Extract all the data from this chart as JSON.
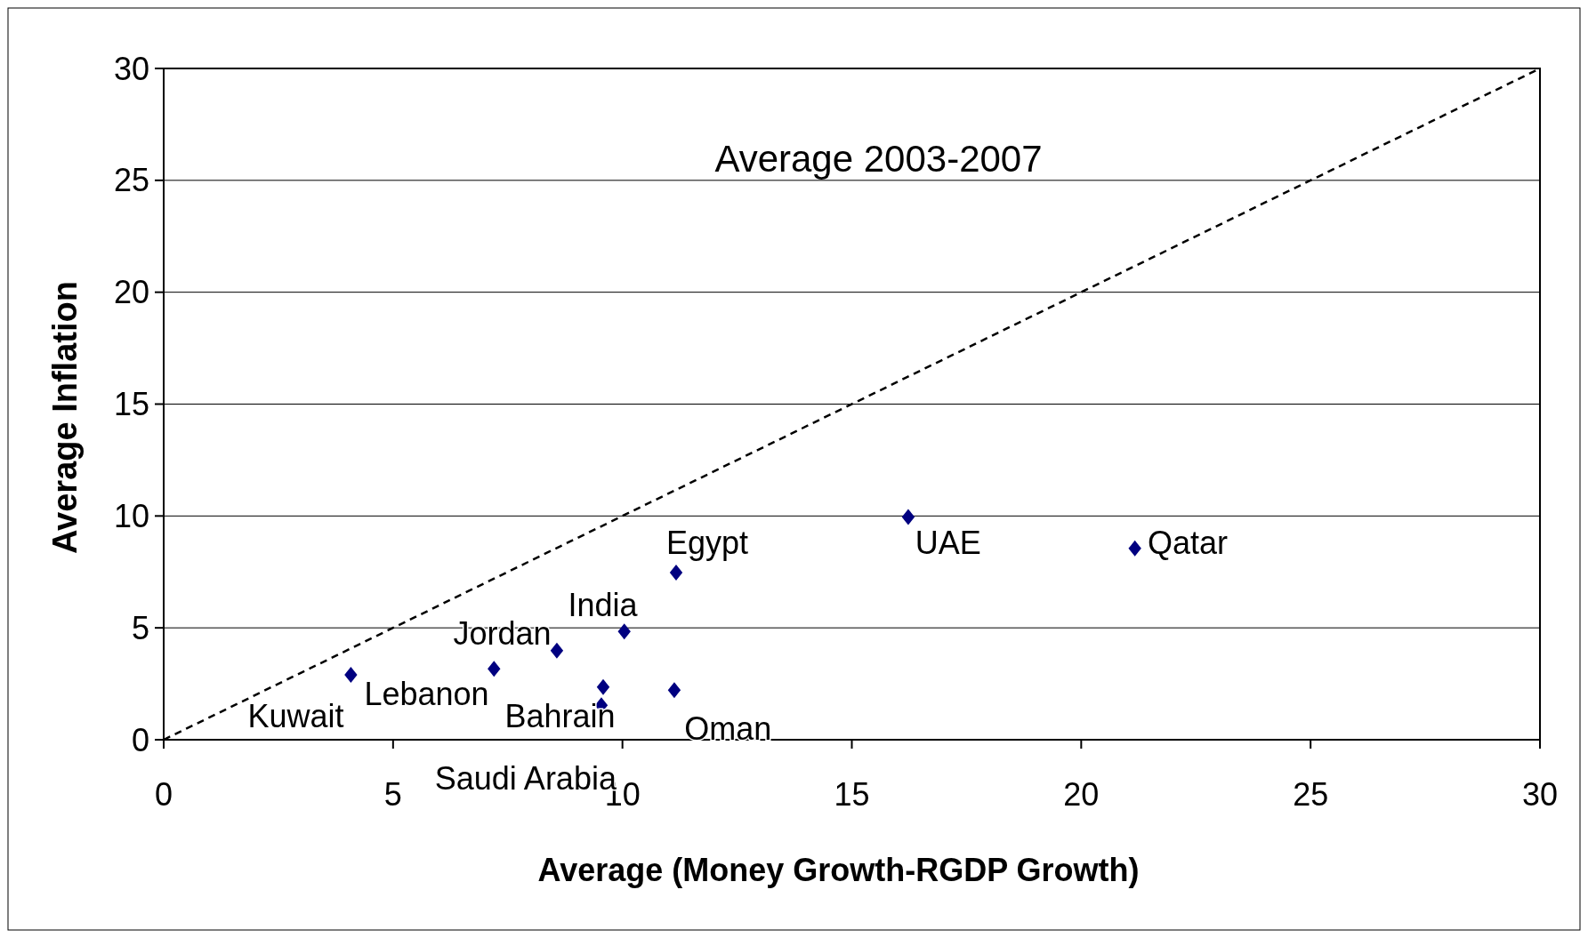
{
  "chart_data": {
    "type": "scatter",
    "title": "Average 2003-2007",
    "xlabel": "Average (Money Growth-RGDP Growth)",
    "ylabel": "Average Inflation",
    "xlim": [
      0,
      30
    ],
    "ylim": [
      0,
      30
    ],
    "xticks": [
      0,
      5,
      10,
      15,
      20,
      25,
      30
    ],
    "yticks": [
      0,
      5,
      10,
      15,
      20,
      25,
      30
    ],
    "grid": "y",
    "marker": "diamond",
    "series": [
      {
        "type": "scatter",
        "color": "#000080",
        "x": [
          4.08,
          7.2,
          8.57,
          10.04,
          9.58,
          9.54,
          11.17,
          11.13,
          16.23,
          21.17
        ],
        "values": [
          2.9,
          3.17,
          3.98,
          4.84,
          2.35,
          1.54,
          7.47,
          2.22,
          9.95,
          8.55
        ]
      },
      {
        "type": "line",
        "color": "#000000",
        "line_style": "dashed",
        "marker": "none",
        "x": [
          0,
          30
        ],
        "values": [
          0,
          30
        ]
      }
    ],
    "annotations": [
      "Egypt",
      "UAE",
      "Qatar",
      "India",
      "Jordan",
      "Lebanon",
      "Kuwait",
      "Bahrain",
      "Oman",
      "Saudi Arabia"
    ]
  }
}
